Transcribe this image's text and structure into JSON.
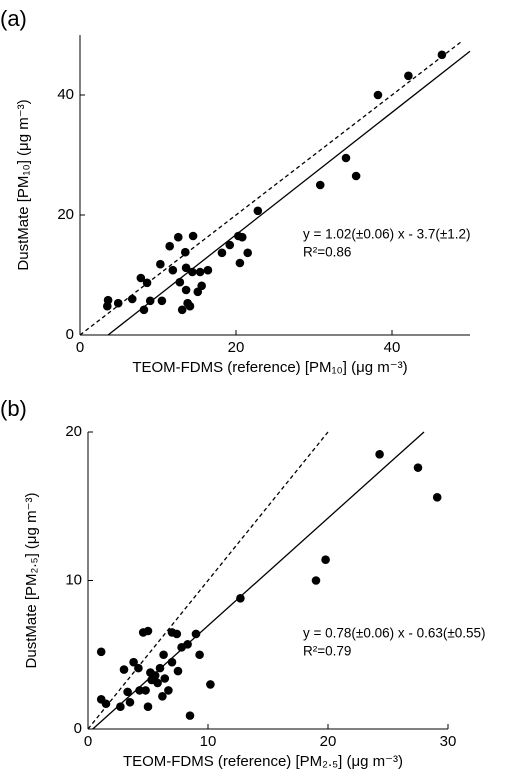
{
  "chart_data": [
    {
      "type": "scatter",
      "panel_label": "(a)",
      "xlabel": "TEOM-FDMS (reference) [PM₁₀] (μg m⁻³)",
      "ylabel": "DustMate [PM₁₀] (μg m⁻³)",
      "annotation": [
        "y = 1.02(±0.06) x - 3.7(±1.2)",
        "R²=0.86"
      ],
      "xlim": [
        0,
        50
      ],
      "ylim": [
        0,
        50
      ],
      "xticks": [
        0,
        20,
        40
      ],
      "yticks": [
        0,
        20,
        40
      ],
      "series": [
        {
          "type": "scatter",
          "color": "#000000",
          "x": [
            3.6,
            3.5,
            4.9,
            6.7,
            7.8,
            8.6,
            8.2,
            9.0,
            10.3,
            10.5,
            11.5,
            11.9,
            12.6,
            12.8,
            13.1,
            13.5,
            13.6,
            13.8,
            14.1,
            14.5,
            14.4,
            15.1,
            15.4,
            15.6,
            16.4,
            18.2,
            19.2,
            20.3,
            20.8,
            20.5,
            21.5,
            22.8,
            30.8,
            34.1,
            35.4,
            38.2,
            42.1,
            46.4,
            13.6
          ],
          "values": [
            5.8,
            4.8,
            5.3,
            6.0,
            9.5,
            8.7,
            4.2,
            5.7,
            11.8,
            5.7,
            14.8,
            10.8,
            16.3,
            8.8,
            4.2,
            13.8,
            7.5,
            5.3,
            4.8,
            16.5,
            10.5,
            7.2,
            10.5,
            8.2,
            10.8,
            13.7,
            15.0,
            16.5,
            16.3,
            12.0,
            13.7,
            20.7,
            25.0,
            29.5,
            26.5,
            40.0,
            43.2,
            46.7,
            11.2
          ]
        },
        {
          "type": "line",
          "color": "#000000",
          "dash": false,
          "x": [
            3.6,
            50
          ],
          "values": [
            0,
            47.3
          ]
        },
        {
          "type": "line",
          "color": "#000000",
          "dash": true,
          "x": [
            0,
            49
          ],
          "values": [
            0,
            49
          ]
        }
      ]
    },
    {
      "type": "scatter",
      "panel_label": "(b)",
      "xlabel": "TEOM-FDMS (reference) [PM₂.₅] (μg m⁻³)",
      "ylabel": "DustMate [PM₂.₅] (μg m⁻³)",
      "annotation": [
        "y = 0.78(±0.06) x - 0.63(±0.55)",
        "R²=0.79"
      ],
      "xlim": [
        0,
        30
      ],
      "ylim": [
        0,
        20
      ],
      "xticks": [
        0,
        10,
        20,
        30
      ],
      "yticks": [
        0,
        10,
        20
      ],
      "series": [
        {
          "type": "scatter",
          "color": "#000000",
          "x": [
            1.1,
            1.1,
            1.5,
            2.7,
            3.0,
            3.3,
            3.5,
            3.8,
            4.2,
            4.3,
            4.6,
            5.0,
            4.8,
            5.0,
            5.2,
            5.3,
            5.6,
            5.8,
            6.0,
            6.2,
            6.3,
            6.4,
            6.7,
            7.0,
            7.0,
            7.4,
            7.5,
            7.8,
            8.3,
            8.5,
            9.0,
            9.3,
            10.2,
            12.7,
            19.0,
            19.8,
            24.3,
            27.5,
            29.1
          ],
          "values": [
            5.2,
            2.0,
            1.7,
            1.5,
            4.0,
            2.5,
            1.8,
            4.5,
            4.1,
            2.6,
            6.5,
            6.6,
            2.6,
            1.5,
            3.8,
            3.3,
            3.6,
            3.1,
            4.1,
            2.2,
            5.0,
            3.4,
            2.6,
            4.5,
            6.5,
            6.4,
            3.9,
            5.5,
            5.7,
            0.9,
            6.4,
            5.0,
            3.0,
            8.8,
            10.0,
            11.4,
            18.5,
            17.6,
            15.6
          ]
        },
        {
          "type": "line",
          "color": "#000000",
          "dash": false,
          "x": [
            0.4,
            28
          ],
          "values": [
            0,
            20
          ]
        },
        {
          "type": "line",
          "color": "#000000",
          "dash": true,
          "x": [
            0,
            20
          ],
          "values": [
            0,
            20
          ]
        }
      ]
    }
  ]
}
